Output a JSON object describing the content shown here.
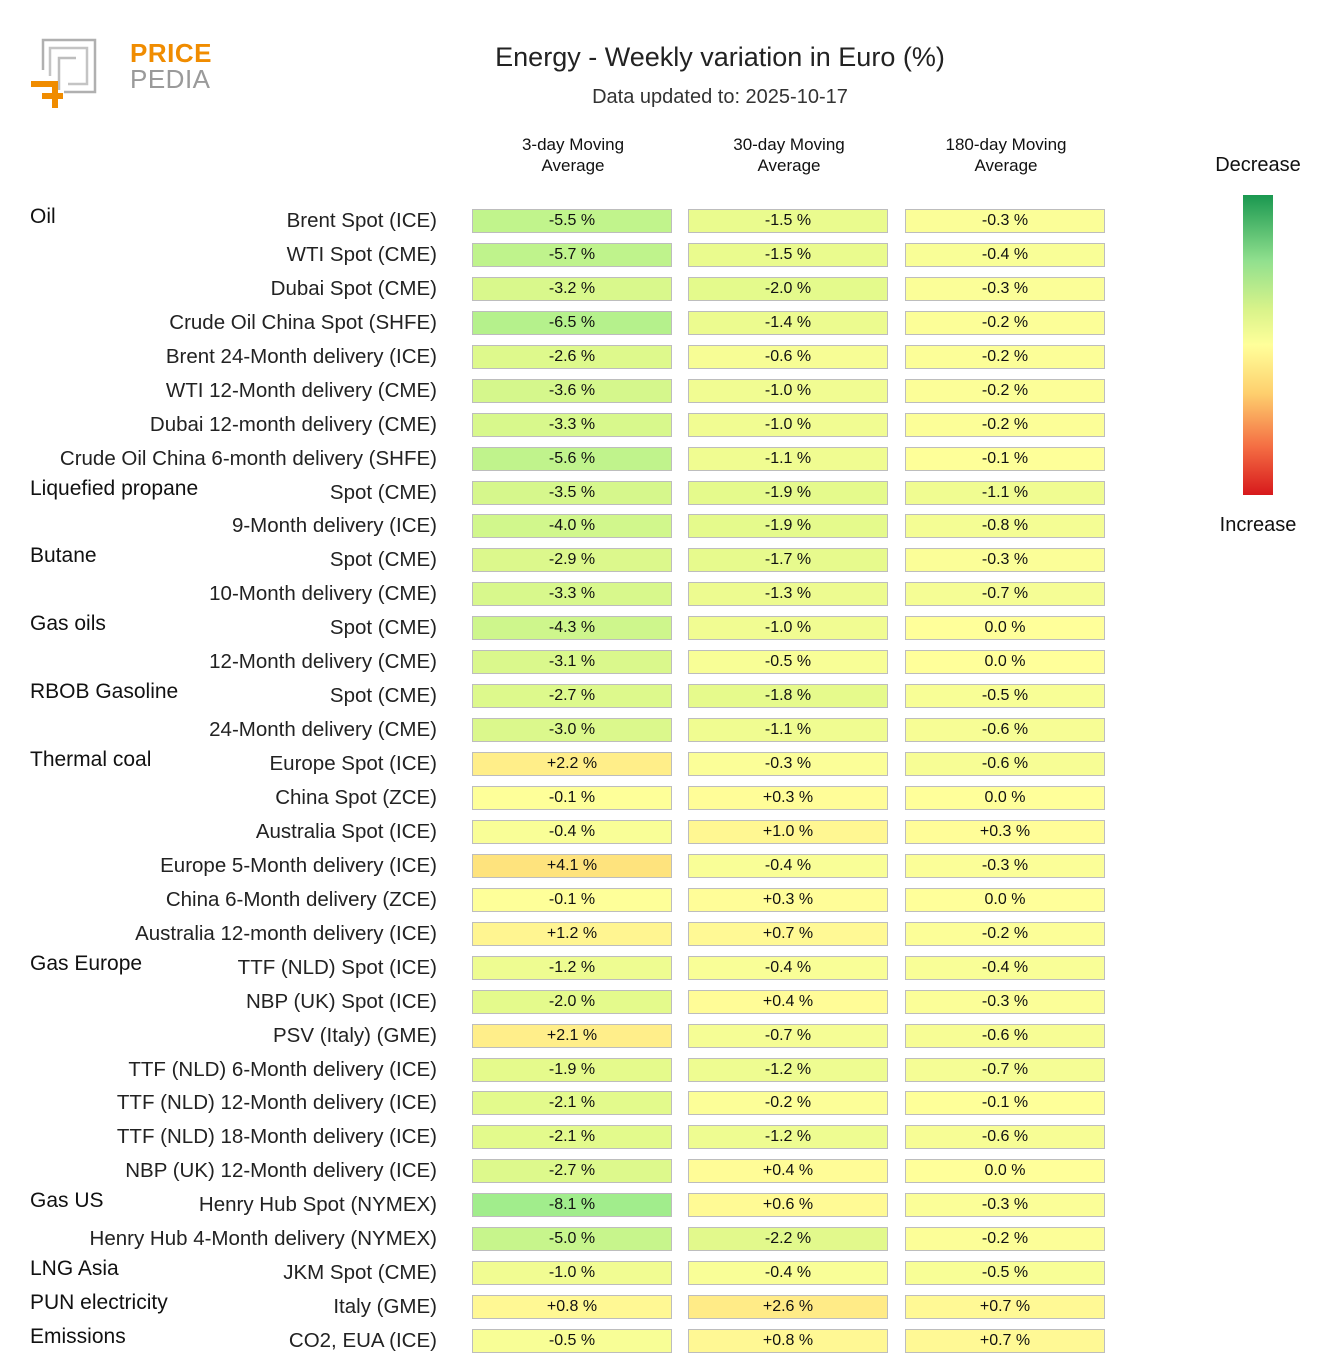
{
  "logo": {
    "line1": "PRICE",
    "line2": "PEDIA"
  },
  "colors": {
    "logo_orange": "#f08c00",
    "logo_gray": "#9a9a9a",
    "decrease": "#1a9850",
    "neutral": "#ffff9a",
    "increase": "#d7191c"
  },
  "legend": {
    "top": "Decrease",
    "bottom": "Increase"
  },
  "chart_data": {
    "type": "heatmap",
    "title": "Energy - Weekly variation in Euro (%)",
    "subtitle": "Data updated to: 2025-10-17",
    "columns": [
      "3-day Moving Average",
      "30-day Moving Average",
      "180-day Moving Average"
    ],
    "unit": "%",
    "rows": [
      {
        "group": "Oil",
        "label": "Brent Spot (ICE)",
        "values": [
          -5.5,
          -1.5,
          -0.3
        ]
      },
      {
        "group": "",
        "label": "WTI Spot (CME)",
        "values": [
          -5.7,
          -1.5,
          -0.4
        ]
      },
      {
        "group": "",
        "label": "Dubai Spot (CME)",
        "values": [
          -3.2,
          -2.0,
          -0.3
        ]
      },
      {
        "group": "",
        "label": "Crude Oil China Spot (SHFE)",
        "values": [
          -6.5,
          -1.4,
          -0.2
        ]
      },
      {
        "group": "",
        "label": "Brent 24-Month delivery (ICE)",
        "values": [
          -2.6,
          -0.6,
          -0.2
        ]
      },
      {
        "group": "",
        "label": "WTI 12-Month delivery (CME)",
        "values": [
          -3.6,
          -1.0,
          -0.2
        ]
      },
      {
        "group": "",
        "label": "Dubai 12-month delivery (CME)",
        "values": [
          -3.3,
          -1.0,
          -0.2
        ]
      },
      {
        "group": "",
        "label": "Crude Oil China 6-month delivery (SHFE)",
        "values": [
          -5.6,
          -1.1,
          -0.1
        ]
      },
      {
        "group": "Liquefied propane",
        "label": "Spot (CME)",
        "values": [
          -3.5,
          -1.9,
          -1.1
        ]
      },
      {
        "group": "",
        "label": "9-Month delivery (ICE)",
        "values": [
          -4.0,
          -1.9,
          -0.8
        ]
      },
      {
        "group": "Butane",
        "label": "Spot (CME)",
        "values": [
          -2.9,
          -1.7,
          -0.3
        ]
      },
      {
        "group": "",
        "label": "10-Month delivery (CME)",
        "values": [
          -3.3,
          -1.3,
          -0.7
        ]
      },
      {
        "group": "Gas oils",
        "label": "Spot (CME)",
        "values": [
          -4.3,
          -1.0,
          0.0
        ]
      },
      {
        "group": "",
        "label": "12-Month delivery (CME)",
        "values": [
          -3.1,
          -0.5,
          0.0
        ]
      },
      {
        "group": "RBOB Gasoline",
        "label": "Spot (CME)",
        "values": [
          -2.7,
          -1.8,
          -0.5
        ]
      },
      {
        "group": "",
        "label": "24-Month delivery (CME)",
        "values": [
          -3.0,
          -1.1,
          -0.6
        ]
      },
      {
        "group": "Thermal coal",
        "label": "Europe Spot (ICE)",
        "values": [
          2.2,
          -0.3,
          -0.6
        ]
      },
      {
        "group": "",
        "label": "China Spot (ZCE)",
        "values": [
          -0.1,
          0.3,
          0.0
        ]
      },
      {
        "group": "",
        "label": "Australia Spot (ICE)",
        "values": [
          -0.4,
          1.0,
          0.3
        ]
      },
      {
        "group": "",
        "label": "Europe 5-Month delivery (ICE)",
        "values": [
          4.1,
          -0.4,
          -0.3
        ]
      },
      {
        "group": "",
        "label": "China 6-Month delivery (ZCE)",
        "values": [
          -0.1,
          0.3,
          0.0
        ]
      },
      {
        "group": "",
        "label": "Australia 12-month delivery (ICE)",
        "values": [
          1.2,
          0.7,
          -0.2
        ]
      },
      {
        "group": "Gas Europe",
        "label": "TTF (NLD) Spot (ICE)",
        "values": [
          -1.2,
          -0.4,
          -0.4
        ]
      },
      {
        "group": "",
        "label": "NBP (UK) Spot (ICE)",
        "values": [
          -2.0,
          0.4,
          -0.3
        ]
      },
      {
        "group": "",
        "label": "PSV (Italy) (GME)",
        "values": [
          2.1,
          -0.7,
          -0.6
        ]
      },
      {
        "group": "",
        "label": "TTF (NLD) 6-Month delivery (ICE)",
        "values": [
          -1.9,
          -1.2,
          -0.7
        ]
      },
      {
        "group": "",
        "label": "TTF (NLD) 12-Month delivery (ICE)",
        "values": [
          -2.1,
          -0.2,
          -0.1
        ]
      },
      {
        "group": "",
        "label": "TTF (NLD) 18-Month delivery (ICE)",
        "values": [
          -2.1,
          -1.2,
          -0.6
        ]
      },
      {
        "group": "",
        "label": "NBP (UK) 12-Month delivery (ICE)",
        "values": [
          -2.7,
          0.4,
          0.0
        ]
      },
      {
        "group": "Gas US",
        "label": "Henry Hub Spot (NYMEX)",
        "values": [
          -8.1,
          0.6,
          -0.3
        ]
      },
      {
        "group": "",
        "label": "Henry Hub 4-Month delivery (NYMEX)",
        "values": [
          -5.0,
          -2.2,
          -0.2
        ]
      },
      {
        "group": "LNG Asia",
        "label": "JKM Spot (CME)",
        "values": [
          -1.0,
          -0.4,
          -0.5
        ]
      },
      {
        "group": "PUN electricity",
        "label": "Italy (GME)",
        "values": [
          0.8,
          2.6,
          0.7
        ]
      },
      {
        "group": "Emissions",
        "label": "CO2, EUA (ICE)",
        "values": [
          -0.5,
          0.8,
          0.7
        ]
      }
    ]
  }
}
